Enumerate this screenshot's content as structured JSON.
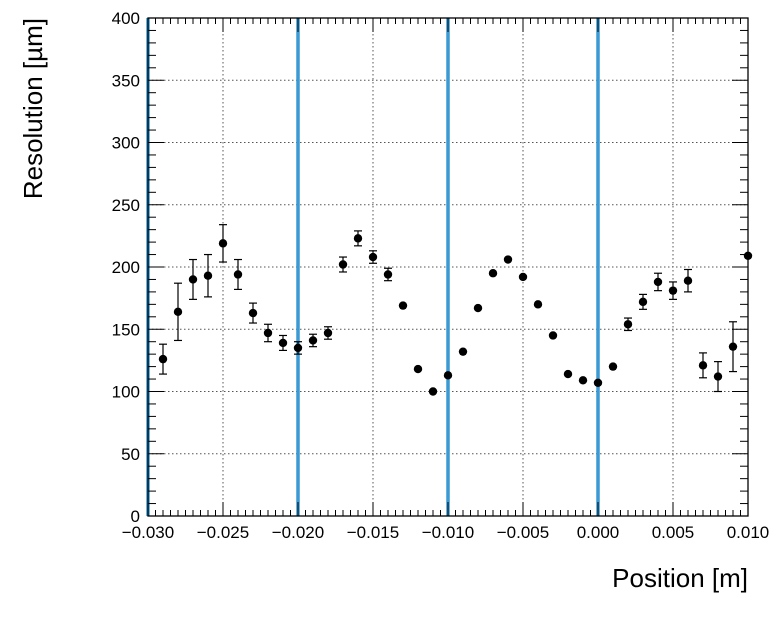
{
  "chart_data": {
    "type": "scatter",
    "xlabel": "Position [m]",
    "ylabel": "Resolution [µm]",
    "xlim": [
      -0.03,
      0.01
    ],
    "ylim": [
      0,
      400
    ],
    "x_ticks": [
      -0.03,
      -0.025,
      -0.02,
      -0.015,
      -0.01,
      -0.005,
      0.0,
      0.005,
      0.01
    ],
    "x_tick_labels": [
      "−0.030",
      "−0.025",
      "−0.020",
      "−0.015",
      "−0.010",
      "−0.005",
      "0.000",
      "0.005",
      "0.010"
    ],
    "y_ticks": [
      0,
      50,
      100,
      150,
      200,
      250,
      300,
      350,
      400
    ],
    "y_tick_labels": [
      "0",
      "50",
      "100",
      "150",
      "200",
      "250",
      "300",
      "350",
      "400"
    ],
    "grid": true,
    "vertical_lines": {
      "x": [
        -0.03,
        -0.02,
        -0.01,
        0.0
      ],
      "color": "#3a9ad4"
    },
    "marker_color": "#000000",
    "series": [
      {
        "points": [
          {
            "x": -0.029,
            "y": 126,
            "err": 12
          },
          {
            "x": -0.028,
            "y": 164,
            "err": 23
          },
          {
            "x": -0.027,
            "y": 190,
            "err": 16
          },
          {
            "x": -0.026,
            "y": 193,
            "err": 17
          },
          {
            "x": -0.025,
            "y": 219,
            "err": 15
          },
          {
            "x": -0.024,
            "y": 194,
            "err": 12
          },
          {
            "x": -0.023,
            "y": 163,
            "err": 8
          },
          {
            "x": -0.022,
            "y": 147,
            "err": 7
          },
          {
            "x": -0.021,
            "y": 139,
            "err": 6
          },
          {
            "x": -0.02,
            "y": 135,
            "err": 5
          },
          {
            "x": -0.019,
            "y": 141,
            "err": 5
          },
          {
            "x": -0.018,
            "y": 147,
            "err": 5
          },
          {
            "x": -0.017,
            "y": 202,
            "err": 6
          },
          {
            "x": -0.016,
            "y": 223,
            "err": 6
          },
          {
            "x": -0.015,
            "y": 208,
            "err": 5
          },
          {
            "x": -0.014,
            "y": 194,
            "err": 5
          },
          {
            "x": -0.013,
            "y": 169,
            "err": 0
          },
          {
            "x": -0.012,
            "y": 118,
            "err": 0
          },
          {
            "x": -0.011,
            "y": 100,
            "err": 0
          },
          {
            "x": -0.01,
            "y": 113,
            "err": 0
          },
          {
            "x": -0.009,
            "y": 132,
            "err": 0
          },
          {
            "x": -0.008,
            "y": 167,
            "err": 0
          },
          {
            "x": -0.007,
            "y": 195,
            "err": 0
          },
          {
            "x": -0.006,
            "y": 206,
            "err": 0
          },
          {
            "x": -0.005,
            "y": 192,
            "err": 0
          },
          {
            "x": -0.004,
            "y": 170,
            "err": 0
          },
          {
            "x": -0.003,
            "y": 145,
            "err": 0
          },
          {
            "x": -0.002,
            "y": 114,
            "err": 0
          },
          {
            "x": -0.001,
            "y": 109,
            "err": 0
          },
          {
            "x": 0.0,
            "y": 107,
            "err": 0
          },
          {
            "x": 0.001,
            "y": 120,
            "err": 0
          },
          {
            "x": 0.002,
            "y": 154,
            "err": 5
          },
          {
            "x": 0.003,
            "y": 172,
            "err": 6
          },
          {
            "x": 0.004,
            "y": 188,
            "err": 7
          },
          {
            "x": 0.005,
            "y": 181,
            "err": 7
          },
          {
            "x": 0.006,
            "y": 189,
            "err": 9
          },
          {
            "x": 0.007,
            "y": 121,
            "err": 10
          },
          {
            "x": 0.008,
            "y": 112,
            "err": 12
          },
          {
            "x": 0.009,
            "y": 136,
            "err": 20
          },
          {
            "x": 0.01,
            "y": 209,
            "err": 0
          }
        ]
      }
    ]
  }
}
